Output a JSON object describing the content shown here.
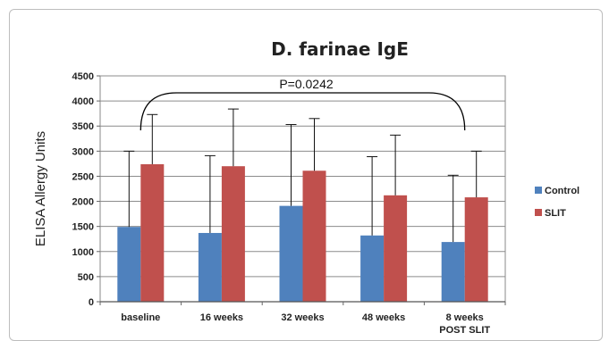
{
  "chart_data": {
    "type": "bar",
    "title": "D. farinae IgE",
    "xlabel": "",
    "ylabel": "ELISA Allergy Units",
    "ylim": [
      0,
      4500
    ],
    "yticks": [
      0,
      500,
      1000,
      1500,
      2000,
      2500,
      3000,
      3500,
      4000,
      4500
    ],
    "grid": true,
    "legend_position": "right",
    "categories": [
      [
        "baseline"
      ],
      [
        "16 weeks"
      ],
      [
        "32 weeks"
      ],
      [
        "48 weeks"
      ],
      [
        "8 weeks",
        "POST SLIT"
      ]
    ],
    "series": [
      {
        "name": "Control",
        "color": "#4f81bd",
        "values": [
          1490,
          1370,
          1910,
          1320,
          1190
        ],
        "error_upper": [
          3000,
          2910,
          3530,
          2890,
          2520
        ]
      },
      {
        "name": "SLIT",
        "color": "#c0504d",
        "values": [
          2740,
          2700,
          2610,
          2120,
          2080
        ],
        "error_upper": [
          3730,
          3840,
          3650,
          3320,
          3000
        ]
      }
    ],
    "annotation": {
      "text": "P=0.0242",
      "from_category": "baseline",
      "to_category": "8 weeks POST SLIT"
    }
  }
}
